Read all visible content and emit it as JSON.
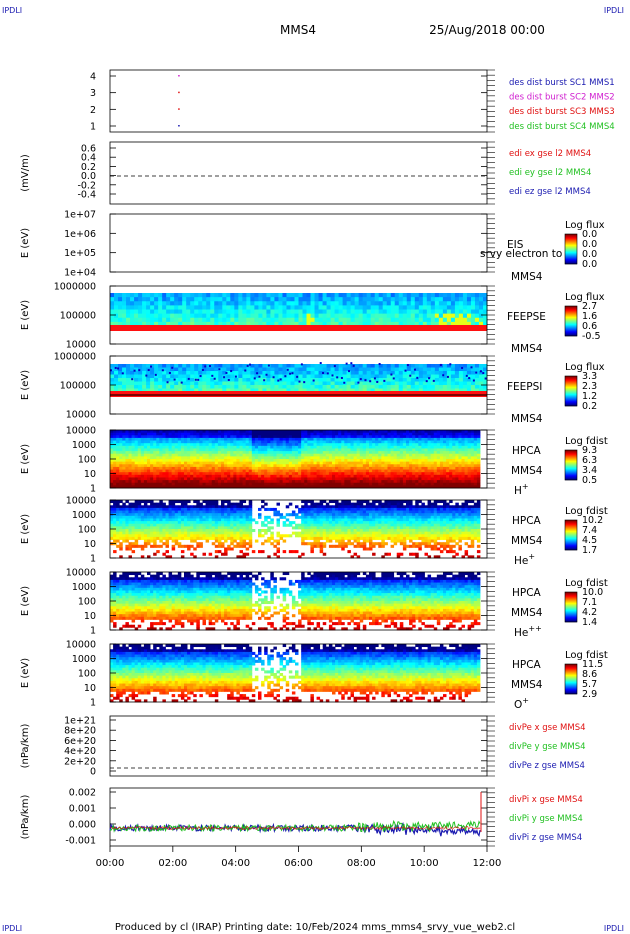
{
  "header": {
    "corner_label": "IPDLI",
    "spacecraft": "MMS4",
    "datetime": "25/Aug/2018 00:00"
  },
  "footer": {
    "text": "Produced by cl (IRAP)   Printing date: 10/Feb/2024   mms_mms4_srvy_vue_web2.cl"
  },
  "x_axis": {
    "ticks": [
      "00:00",
      "02:00",
      "04:00",
      "06:00",
      "08:00",
      "10:00",
      "12:00"
    ]
  },
  "colors": {
    "blue": "#1a1ab0",
    "magenta": "#d020d0",
    "red": "#e01010",
    "green": "#20c020"
  },
  "panels": [
    {
      "id": "des-dist-burst",
      "ylabel": "",
      "yticks": [
        "4",
        "3",
        "2",
        "1"
      ],
      "legend": [
        {
          "text": "des dist burst SC1 MMS1",
          "color": "#1a1ab0"
        },
        {
          "text": "des dist burst SC2 MMS2",
          "color": "#d020d0"
        },
        {
          "text": "des dist burst SC3 MMS3",
          "color": "#e01010"
        },
        {
          "text": "des dist burst SC4 MMS4",
          "color": "#20c020"
        }
      ]
    },
    {
      "id": "edi-e-gse",
      "ylabel": "(mV/m)",
      "yticks": [
        "0.6",
        "0.4",
        "0.2",
        "0.0",
        "-0.2",
        "-0.4"
      ],
      "legend": [
        {
          "text": "edi ex gse l2 MMS4",
          "color": "#e01010"
        },
        {
          "text": "edi ey gse l2 MMS4",
          "color": "#20c020"
        },
        {
          "text": "edi ez gse l2 MMS4",
          "color": "#1a1ab0"
        }
      ]
    },
    {
      "id": "eis",
      "ylabel": "E (eV)",
      "yticks": [
        "1e+07",
        "1e+06",
        "1e+05",
        "1e+04"
      ],
      "instrument": "EIS",
      "overlay": "srvy electron to",
      "sc": "MMS4",
      "colorbar_title": "Log flux",
      "colorbar_ticks": [
        "0.0",
        "0.0",
        "0.0",
        "0.0"
      ]
    },
    {
      "id": "feeps-e",
      "ylabel": "E (eV)",
      "yticks": [
        "1000000",
        "100000",
        "10000"
      ],
      "instrument": "FEEPSE",
      "sc": "MMS4",
      "colorbar_title": "Log flux",
      "colorbar_ticks": [
        "2.7",
        "1.6",
        "0.6",
        "-0.5"
      ]
    },
    {
      "id": "feeps-i",
      "ylabel": "E (eV)",
      "yticks": [
        "1000000",
        "100000",
        "10000"
      ],
      "instrument": "FEEPSI",
      "sc": "MMS4",
      "colorbar_title": "Log flux",
      "colorbar_ticks": [
        "3.3",
        "2.3",
        "1.2",
        "0.2"
      ]
    },
    {
      "id": "hpca-h",
      "ylabel": "E (eV)",
      "yticks": [
        "10000",
        "1000",
        "100",
        "10",
        "1"
      ],
      "instrument": "HPCA",
      "sc": "MMS4",
      "species": "H",
      "species_sup": "+",
      "colorbar_title": "Log fdist",
      "colorbar_ticks": [
        "9.3",
        "6.3",
        "3.4",
        "0.5"
      ]
    },
    {
      "id": "hpca-he",
      "ylabel": "E (eV)",
      "yticks": [
        "10000",
        "1000",
        "100",
        "10",
        "1"
      ],
      "instrument": "HPCA",
      "sc": "MMS4",
      "species": "He",
      "species_sup": "+",
      "colorbar_title": "Log fdist",
      "colorbar_ticks": [
        "10.2",
        "7.4",
        "4.5",
        "1.7"
      ]
    },
    {
      "id": "hpca-hepp",
      "ylabel": "E (eV)",
      "yticks": [
        "10000",
        "1000",
        "100",
        "10",
        "1"
      ],
      "instrument": "HPCA",
      "sc": "MMS4",
      "species": "He",
      "species_sup": "++",
      "colorbar_title": "Log fdist",
      "colorbar_ticks": [
        "10.0",
        "7.1",
        "4.2",
        "1.4"
      ]
    },
    {
      "id": "hpca-o",
      "ylabel": "E (eV)",
      "yticks": [
        "10000",
        "1000",
        "100",
        "10",
        "1"
      ],
      "instrument": "HPCA",
      "sc": "MMS4",
      "species": "O",
      "species_sup": "+",
      "colorbar_title": "Log fdist",
      "colorbar_ticks": [
        "11.5",
        "8.6",
        "5.7",
        "2.9"
      ]
    },
    {
      "id": "divpe",
      "ylabel": "(nPa/km)",
      "yticks": [
        "1e+21",
        "8e+20",
        "6e+20",
        "4e+20",
        "2e+20",
        "0"
      ],
      "legend": [
        {
          "text": "divPe x gse MMS4",
          "color": "#e01010"
        },
        {
          "text": "divPe y gse MMS4",
          "color": "#20c020"
        },
        {
          "text": "divPe z gse MMS4",
          "color": "#1a1ab0"
        }
      ]
    },
    {
      "id": "divpi",
      "ylabel": "(nPa/km)",
      "yticks": [
        "0.002",
        "0.001",
        "0.000",
        "-0.001"
      ],
      "legend": [
        {
          "text": "divPi x gse MMS4",
          "color": "#e01010"
        },
        {
          "text": "divPi y gse MMS4",
          "color": "#20c020"
        },
        {
          "text": "divPi z gse MMS4",
          "color": "#1a1ab0"
        }
      ]
    }
  ],
  "chart_data": {
    "type": "heatmap",
    "title": "MMS4 25/Aug/2018 00:00",
    "xlim": [
      "00:00",
      "12:00"
    ],
    "ion_dropout_interval": [
      "04:40",
      "06:10"
    ],
    "des_dist_burst_points": [
      {
        "time": "02:10",
        "y": 4,
        "sc": "MMS2"
      },
      {
        "time": "02:10",
        "y": 3,
        "sc": "MMS3"
      },
      {
        "time": "02:10",
        "y": 2,
        "sc": "MMS3"
      },
      {
        "time": "02:10",
        "y": 1,
        "sc": "MMS1"
      }
    ],
    "divpi_x_spike": {
      "time": "11:55",
      "value": 0.002
    }
  }
}
